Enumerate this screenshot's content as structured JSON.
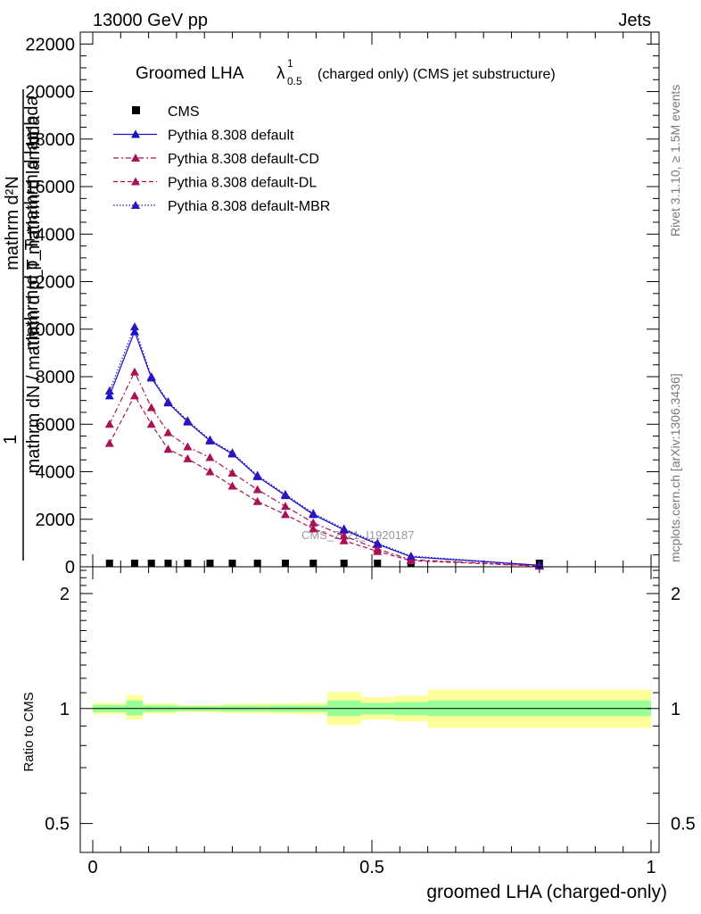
{
  "header": {
    "left": "13000 GeV pp",
    "right": "Jets"
  },
  "side_labels": {
    "rivet": "Rivet 3.1.10, ≥ 1.5M events",
    "mcplots": "mcplots.cern.ch [arXiv:1306.3436]"
  },
  "watermark": "CMS_2021_I1920187",
  "chart_data": [
    {
      "type": "line",
      "title": "Groomed LHA",
      "title_symbol": "λ",
      "title_sup": "1",
      "title_sub": "0.5",
      "title_suffix": "(charged only) (CMS jet substructure)",
      "ylabel_numerator": "1",
      "ylabel_overlaps": [
        "mathrm d²N",
        "mathrm d p_T mathrm d lambda",
        "mathrm dN / mathrm d p_T mathrm d lambda"
      ],
      "xlim": [
        0,
        1
      ],
      "ylim": [
        0,
        22500
      ],
      "y_ticks": [
        0,
        2000,
        4000,
        6000,
        8000,
        10000,
        12000,
        14000,
        16000,
        18000,
        20000,
        22000
      ],
      "x_ticks": [
        0,
        0.5,
        1
      ],
      "x": [
        0.03,
        0.075,
        0.105,
        0.135,
        0.17,
        0.21,
        0.25,
        0.295,
        0.345,
        0.395,
        0.45,
        0.51,
        0.57,
        0.8
      ],
      "series": [
        {
          "name": "CMS",
          "color": "#000000",
          "style": "markers",
          "values": [
            6.5,
            39,
            35,
            26,
            15,
            9,
            5.5,
            3.5,
            2.2,
            1.5,
            1.2,
            0.8,
            0.5,
            0.2
          ]
        },
        {
          "name": "Pythia 8.308 default",
          "color": "#1111cc",
          "style": "solid",
          "values": [
            7200,
            9900,
            7950,
            6900,
            6100,
            5300,
            4750,
            3800,
            3000,
            2200,
            1550,
            950,
            420,
            60
          ]
        },
        {
          "name": "Pythia 8.308 default-CD",
          "color": "#aa1155",
          "style": "dashdot",
          "values": [
            6000,
            8200,
            6700,
            5650,
            5050,
            4600,
            3950,
            3250,
            2550,
            1850,
            1300,
            750,
            300,
            40
          ]
        },
        {
          "name": "Pythia 8.308 default-DL",
          "color": "#aa1155",
          "style": "dashed",
          "values": [
            5200,
            7200,
            6000,
            4950,
            4550,
            4000,
            3400,
            2750,
            2200,
            1600,
            1100,
            650,
            260,
            30
          ]
        },
        {
          "name": "Pythia 8.308 default-MBR",
          "color": "#3311bb",
          "style": "dotted",
          "values": [
            7400,
            10100,
            8000,
            6950,
            6150,
            5350,
            4800,
            3850,
            3050,
            2250,
            1600,
            1000,
            450,
            70
          ]
        }
      ]
    },
    {
      "type": "area",
      "ylabel": "Ratio to CMS",
      "xlabel": "groomed LHA (charged-only)",
      "xlim": [
        0,
        1
      ],
      "ylim": [
        0.42,
        2.35
      ],
      "y_ticks": [
        0.5,
        1,
        2
      ],
      "x_ticks": [
        0,
        0.5,
        1
      ],
      "reference_line": 1,
      "bands": [
        {
          "x0": 0.0,
          "x1": 0.06,
          "inner": [
            0.978,
            1.022
          ],
          "outer": [
            0.965,
            1.035
          ]
        },
        {
          "x0": 0.06,
          "x1": 0.09,
          "inner": [
            0.96,
            1.05
          ],
          "outer": [
            0.935,
            1.085
          ]
        },
        {
          "x0": 0.09,
          "x1": 0.12,
          "inner": [
            0.98,
            1.02
          ],
          "outer": [
            0.97,
            1.03
          ]
        },
        {
          "x0": 0.12,
          "x1": 0.15,
          "inner": [
            0.98,
            1.02
          ],
          "outer": [
            0.968,
            1.032
          ]
        },
        {
          "x0": 0.15,
          "x1": 0.19,
          "inner": [
            0.985,
            1.015
          ],
          "outer": [
            0.977,
            1.023
          ]
        },
        {
          "x0": 0.19,
          "x1": 0.23,
          "inner": [
            0.985,
            1.015
          ],
          "outer": [
            0.977,
            1.023
          ]
        },
        {
          "x0": 0.23,
          "x1": 0.27,
          "inner": [
            0.982,
            1.018
          ],
          "outer": [
            0.972,
            1.028
          ]
        },
        {
          "x0": 0.27,
          "x1": 0.32,
          "inner": [
            0.982,
            1.018
          ],
          "outer": [
            0.97,
            1.03
          ]
        },
        {
          "x0": 0.32,
          "x1": 0.37,
          "inner": [
            0.98,
            1.02
          ],
          "outer": [
            0.968,
            1.032
          ]
        },
        {
          "x0": 0.37,
          "x1": 0.42,
          "inner": [
            0.98,
            1.02
          ],
          "outer": [
            0.965,
            1.035
          ]
        },
        {
          "x0": 0.42,
          "x1": 0.48,
          "inner": [
            0.955,
            1.05
          ],
          "outer": [
            0.905,
            1.105
          ]
        },
        {
          "x0": 0.48,
          "x1": 0.54,
          "inner": [
            0.965,
            1.035
          ],
          "outer": [
            0.935,
            1.07
          ]
        },
        {
          "x0": 0.54,
          "x1": 0.6,
          "inner": [
            0.96,
            1.04
          ],
          "outer": [
            0.925,
            1.08
          ]
        },
        {
          "x0": 0.6,
          "x1": 1.0,
          "inner": [
            0.955,
            1.05
          ],
          "outer": [
            0.89,
            1.12
          ]
        }
      ],
      "inner_color": "#99ff99",
      "outer_color": "#ffff99",
      "series": [
        {
          "name": "Pythia 8.308 default",
          "color": "#1111cc",
          "values": []
        },
        {
          "name": "Pythia 8.308 default-CD",
          "color": "#aa1155",
          "values": []
        },
        {
          "name": "Pythia 8.308 default-DL",
          "color": "#aa1155",
          "values": []
        },
        {
          "name": "Pythia 8.308 default-MBR",
          "color": "#3311bb",
          "values": []
        }
      ]
    }
  ]
}
